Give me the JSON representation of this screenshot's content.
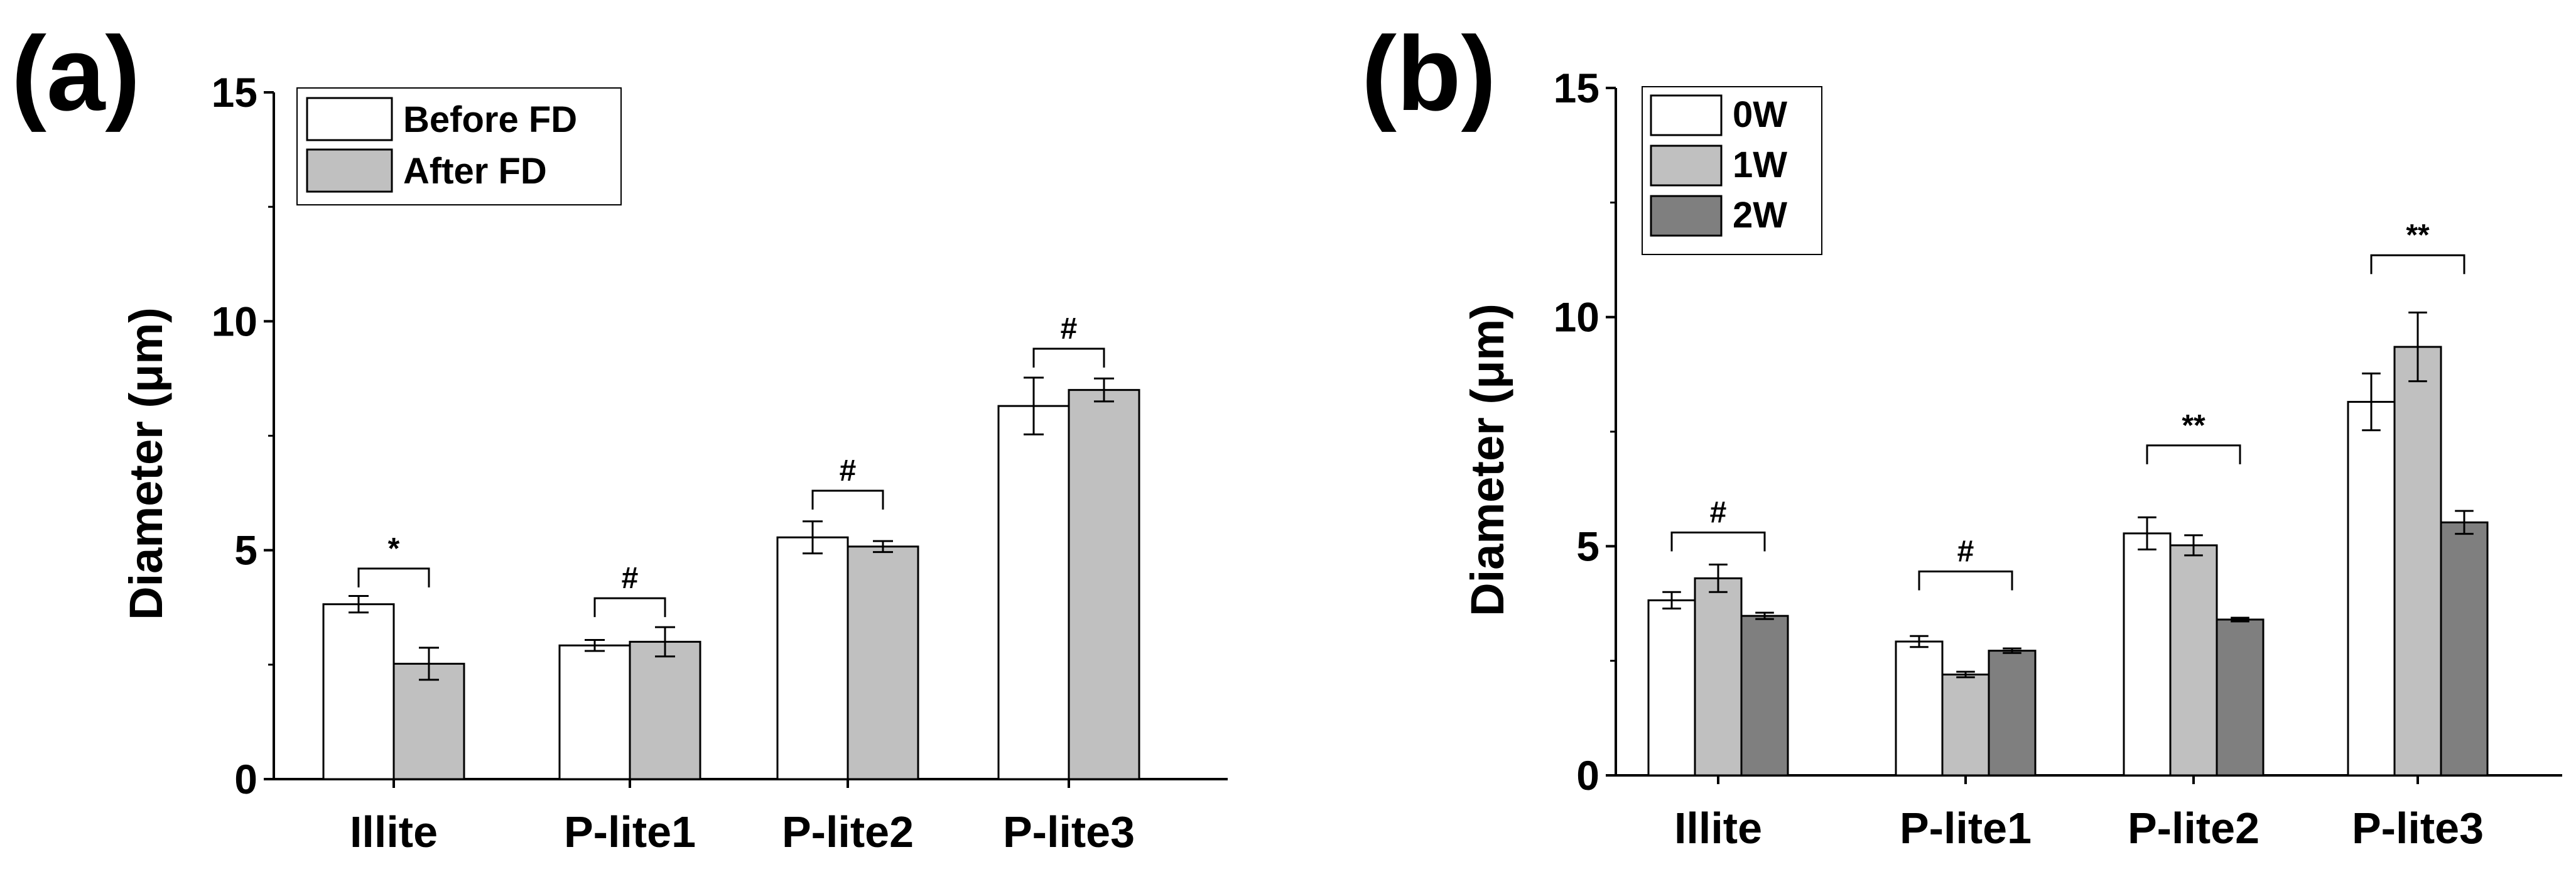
{
  "colors": {
    "before_fd": "#ffffff",
    "after_fd": "#c0c0c0",
    "w0": "#ffffff",
    "w1": "#c0c0c0",
    "w2": "#7f7f7f",
    "stroke": "#000000"
  },
  "chart_data": [
    {
      "panel_label": "(a)",
      "type": "bar",
      "title": "",
      "xlabel": "",
      "ylabel": "Diameter (μm)",
      "ylim": [
        0,
        15
      ],
      "yticks": [
        0,
        5,
        10,
        15
      ],
      "categories": [
        "Illite",
        "P-lite1",
        "P-lite2",
        "P-lite3"
      ],
      "legend_position": "top-left",
      "series": [
        {
          "name": "Before FD",
          "color_key": "before_fd",
          "values": [
            3.82,
            2.92,
            5.28,
            8.15
          ],
          "errors": [
            0.18,
            0.12,
            0.35,
            0.62
          ]
        },
        {
          "name": "After FD",
          "color_key": "after_fd",
          "values": [
            2.52,
            3.0,
            5.08,
            8.5
          ],
          "errors": [
            0.35,
            0.32,
            0.12,
            0.25
          ]
        }
      ],
      "significance": [
        {
          "category": 0,
          "from": 0,
          "to": 1,
          "label": "*",
          "y": 4.6
        },
        {
          "category": 1,
          "from": 0,
          "to": 1,
          "label": "#",
          "y": 3.95
        },
        {
          "category": 2,
          "from": 0,
          "to": 1,
          "label": "#",
          "y": 6.3
        },
        {
          "category": 3,
          "from": 0,
          "to": 1,
          "label": "#",
          "y": 9.4
        }
      ]
    },
    {
      "panel_label": "(b)",
      "type": "bar",
      "title": "",
      "xlabel": "",
      "ylabel": "Diameter (μm)",
      "ylim": [
        0,
        15
      ],
      "yticks": [
        0,
        5,
        10,
        15
      ],
      "categories": [
        "Illite",
        "P-lite1",
        "P-lite2",
        "P-lite3"
      ],
      "legend_position": "top-left",
      "series": [
        {
          "name": "0W",
          "color_key": "w0",
          "values": [
            3.82,
            2.92,
            5.28,
            8.15
          ],
          "errors": [
            0.18,
            0.12,
            0.35,
            0.62
          ]
        },
        {
          "name": "1W",
          "color_key": "w1",
          "values": [
            4.3,
            2.2,
            5.02,
            9.35
          ],
          "errors": [
            0.3,
            0.06,
            0.22,
            0.75
          ]
        },
        {
          "name": "2W",
          "color_key": "w2",
          "values": [
            3.48,
            2.72,
            3.4,
            5.52
          ],
          "errors": [
            0.07,
            0.05,
            0.04,
            0.25
          ]
        }
      ],
      "significance": [
        {
          "category": 0,
          "from": 0,
          "to": 2,
          "label": "#",
          "y": 5.3
        },
        {
          "category": 1,
          "from": 0,
          "to": 2,
          "label": "#",
          "y": 4.45
        },
        {
          "category": 2,
          "from": 0,
          "to": 2,
          "label": "**",
          "y": 7.2
        },
        {
          "category": 3,
          "from": 0,
          "to": 2,
          "label": "**",
          "y": 11.35
        }
      ]
    }
  ]
}
